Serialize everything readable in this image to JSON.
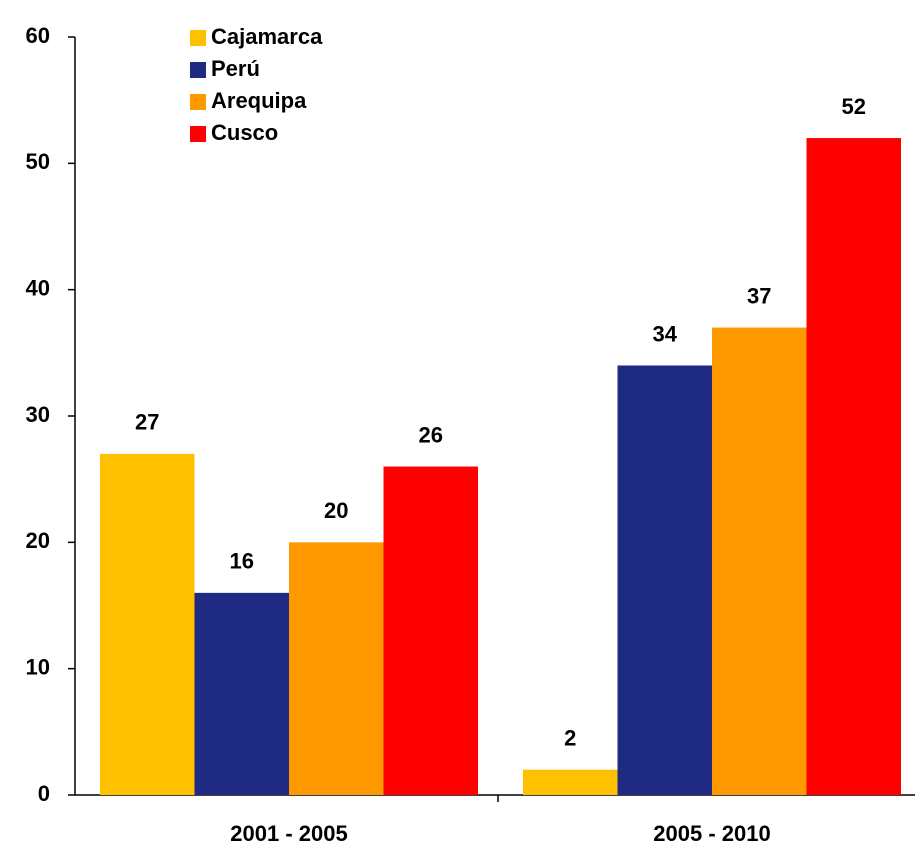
{
  "chart_data": {
    "type": "bar",
    "categories": [
      "2001 - 2005",
      "2005 - 2010"
    ],
    "series": [
      {
        "name": "Cajamarca",
        "color": "#ffc000",
        "values": [
          27,
          2
        ]
      },
      {
        "name": "Perú",
        "color": "#1f2a83",
        "values": [
          16,
          34
        ]
      },
      {
        "name": "Arequipa",
        "color": "#ff9900",
        "values": [
          20,
          37
        ]
      },
      {
        "name": "Cusco",
        "color": "#ff0000",
        "values": [
          26,
          52
        ]
      }
    ],
    "ylim": [
      0,
      60
    ],
    "yticks": [
      0,
      10,
      20,
      30,
      40,
      50,
      60
    ],
    "grid": false,
    "legend": "top-left"
  }
}
